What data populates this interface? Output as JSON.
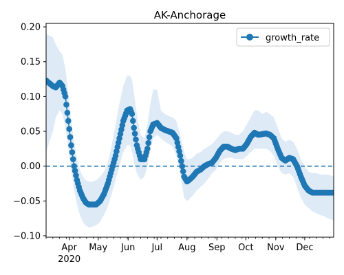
{
  "chart_data": {
    "type": "line",
    "title": "AK-Anchorage",
    "xlabel": "",
    "ylabel": "",
    "x_range": [
      "2020-03-08",
      "2020-12-31"
    ],
    "ylim": [
      -0.102,
      0.205
    ],
    "y_ticks": [
      -0.1,
      -0.05,
      0.0,
      0.05,
      0.1,
      0.15,
      0.2
    ],
    "y_tick_labels": [
      "−0.10",
      "−0.05",
      "0.00",
      "0.05",
      "0.10",
      "0.15",
      "0.20"
    ],
    "x_ticks": [
      {
        "date": "2020-04-01",
        "label": "Apr",
        "sublabel": "2020"
      },
      {
        "date": "2020-05-01",
        "label": "May",
        "sublabel": ""
      },
      {
        "date": "2020-06-01",
        "label": "Jun",
        "sublabel": ""
      },
      {
        "date": "2020-07-01",
        "label": "Jul",
        "sublabel": ""
      },
      {
        "date": "2020-08-01",
        "label": "Aug",
        "sublabel": ""
      },
      {
        "date": "2020-09-01",
        "label": "Sep",
        "sublabel": ""
      },
      {
        "date": "2020-10-01",
        "label": "Oct",
        "sublabel": ""
      },
      {
        "date": "2020-11-01",
        "label": "Nov",
        "sublabel": ""
      },
      {
        "date": "2020-12-01",
        "label": "Dec",
        "sublabel": ""
      }
    ],
    "reference_line": {
      "y": 0.0,
      "style": "dashed"
    },
    "legend": {
      "placement": "top-right",
      "entries": [
        "growth_rate"
      ]
    },
    "grid": false,
    "series": [
      {
        "name": "growth_rate",
        "color": "#1f77b4",
        "band_color": "#deebf7",
        "x": [
          "2020-03-08",
          "2020-03-15",
          "2020-03-18",
          "2020-03-22",
          "2020-03-25",
          "2020-03-28",
          "2020-03-31",
          "2020-04-03",
          "2020-04-06",
          "2020-04-09",
          "2020-04-12",
          "2020-04-15",
          "2020-04-18",
          "2020-04-21",
          "2020-04-25",
          "2020-04-29",
          "2020-05-03",
          "2020-05-07",
          "2020-05-11",
          "2020-05-15",
          "2020-05-19",
          "2020-05-23",
          "2020-05-27",
          "2020-05-31",
          "2020-06-03",
          "2020-06-05",
          "2020-06-07",
          "2020-06-10",
          "2020-06-14",
          "2020-06-18",
          "2020-06-21",
          "2020-06-24",
          "2020-06-27",
          "2020-07-01",
          "2020-07-05",
          "2020-07-09",
          "2020-07-13",
          "2020-07-17",
          "2020-07-21",
          "2020-07-25",
          "2020-07-29",
          "2020-08-01",
          "2020-08-03",
          "2020-08-07",
          "2020-08-11",
          "2020-08-15",
          "2020-08-19",
          "2020-08-23",
          "2020-08-27",
          "2020-08-31",
          "2020-09-04",
          "2020-09-08",
          "2020-09-12",
          "2020-09-16",
          "2020-09-20",
          "2020-09-24",
          "2020-09-28",
          "2020-10-02",
          "2020-10-06",
          "2020-10-10",
          "2020-10-14",
          "2020-10-18",
          "2020-10-22",
          "2020-10-26",
          "2020-10-30",
          "2020-11-03",
          "2020-11-07",
          "2020-11-11",
          "2020-11-15",
          "2020-11-19",
          "2020-11-23",
          "2020-11-27",
          "2020-12-01",
          "2020-12-05",
          "2020-12-09",
          "2020-12-13",
          "2020-12-17",
          "2020-12-21",
          "2020-12-25",
          "2020-12-31"
        ],
        "values": [
          0.123,
          0.115,
          0.113,
          0.12,
          0.115,
          0.1,
          0.065,
          0.03,
          0.0,
          -0.02,
          -0.035,
          -0.045,
          -0.052,
          -0.055,
          -0.055,
          -0.055,
          -0.05,
          -0.04,
          -0.025,
          -0.005,
          0.015,
          0.04,
          0.065,
          0.08,
          0.082,
          0.075,
          0.055,
          0.03,
          0.01,
          0.01,
          0.025,
          0.05,
          0.06,
          0.062,
          0.055,
          0.052,
          0.05,
          0.048,
          0.04,
          0.015,
          -0.015,
          -0.022,
          -0.02,
          -0.015,
          -0.008,
          -0.005,
          0.0,
          0.003,
          0.005,
          0.012,
          0.022,
          0.028,
          0.028,
          0.025,
          0.023,
          0.025,
          0.025,
          0.032,
          0.042,
          0.048,
          0.045,
          0.046,
          0.047,
          0.045,
          0.04,
          0.025,
          0.012,
          0.008,
          0.012,
          0.01,
          0.0,
          -0.015,
          -0.028,
          -0.035,
          -0.038,
          -0.038,
          -0.038,
          -0.038,
          -0.038,
          -0.038
        ],
        "lower": [
          0.02,
          0.05,
          0.07,
          0.08,
          0.075,
          0.055,
          0.025,
          -0.005,
          -0.035,
          -0.055,
          -0.07,
          -0.08,
          -0.085,
          -0.088,
          -0.087,
          -0.085,
          -0.08,
          -0.07,
          -0.058,
          -0.04,
          -0.02,
          0.0,
          0.02,
          0.03,
          0.03,
          0.02,
          0.005,
          -0.01,
          -0.02,
          -0.015,
          0.0,
          0.025,
          0.04,
          0.045,
          0.04,
          0.035,
          0.032,
          0.028,
          0.015,
          -0.01,
          -0.045,
          -0.05,
          -0.048,
          -0.042,
          -0.035,
          -0.03,
          -0.025,
          -0.018,
          -0.01,
          -0.005,
          0.005,
          0.01,
          0.012,
          0.012,
          0.01,
          0.01,
          0.01,
          0.015,
          0.02,
          0.025,
          0.025,
          0.025,
          0.025,
          0.022,
          0.015,
          0.0,
          -0.01,
          -0.012,
          -0.01,
          -0.015,
          -0.03,
          -0.045,
          -0.055,
          -0.06,
          -0.065,
          -0.068,
          -0.07,
          -0.072,
          -0.075,
          -0.078
        ],
        "upper": [
          0.19,
          0.185,
          0.175,
          0.165,
          0.16,
          0.14,
          0.105,
          0.065,
          0.035,
          0.01,
          -0.005,
          -0.015,
          -0.02,
          -0.022,
          -0.022,
          -0.02,
          -0.015,
          -0.008,
          0.005,
          0.03,
          0.06,
          0.09,
          0.115,
          0.13,
          0.13,
          0.125,
          0.105,
          0.075,
          0.045,
          0.04,
          0.06,
          0.09,
          0.11,
          0.11,
          0.08,
          0.075,
          0.072,
          0.07,
          0.065,
          0.045,
          0.02,
          0.01,
          0.01,
          0.012,
          0.018,
          0.02,
          0.025,
          0.028,
          0.032,
          0.038,
          0.045,
          0.05,
          0.05,
          0.048,
          0.045,
          0.045,
          0.05,
          0.06,
          0.07,
          0.08,
          0.08,
          0.075,
          0.078,
          0.075,
          0.07,
          0.055,
          0.04,
          0.035,
          0.038,
          0.035,
          0.025,
          0.01,
          0.0,
          -0.008,
          -0.01,
          -0.01,
          -0.012,
          -0.012,
          -0.012,
          -0.015
        ]
      }
    ]
  }
}
